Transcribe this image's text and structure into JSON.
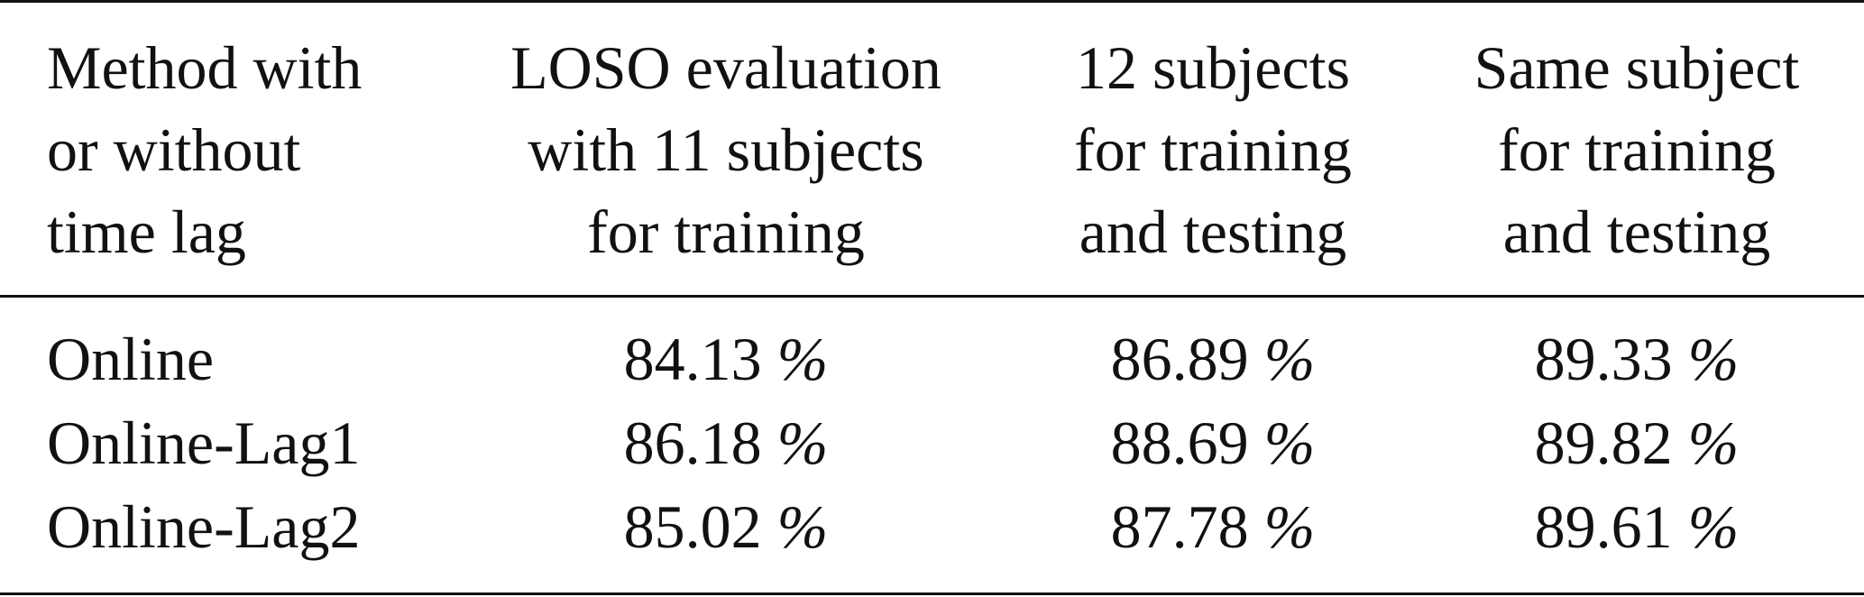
{
  "table": {
    "headers": {
      "method": [
        "Method with",
        "or without",
        "time lag"
      ],
      "loso": [
        "LOSO evaluation",
        "with 11 subjects",
        "for training"
      ],
      "twelve": [
        "12 subjects",
        "for training",
        "and testing"
      ],
      "same": [
        "Same subject",
        "for training",
        "and testing"
      ]
    },
    "rows": [
      {
        "method": "Online",
        "loso": "84.13",
        "twelve": "86.89",
        "same": "89.33"
      },
      {
        "method": "Online-Lag1",
        "loso": "86.18",
        "twelve": "88.69",
        "same": "89.82"
      },
      {
        "method": "Online-Lag2",
        "loso": "85.02",
        "twelve": "87.78",
        "same": "89.61"
      }
    ],
    "unit": "%"
  }
}
